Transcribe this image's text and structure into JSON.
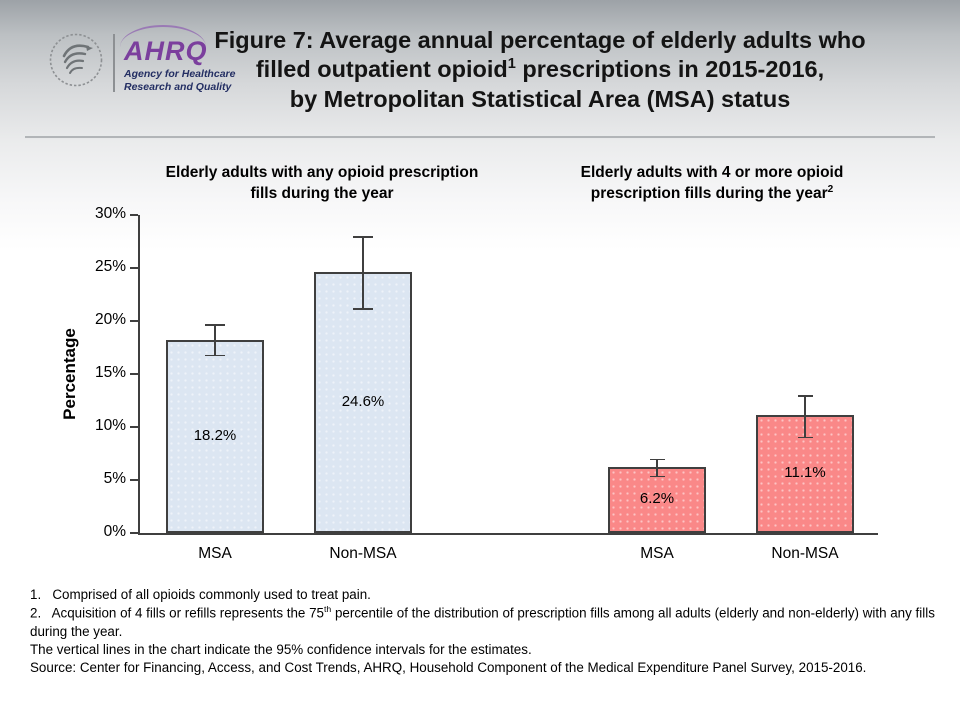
{
  "slide": {
    "logo": {
      "hhs_symbol": "hhs-eagle-icon",
      "org_acronym": "AHRQ",
      "org_name_line1": "Agency for Healthcare",
      "org_name_line2": "Research and Quality",
      "accent_purple": "#7b3f9d",
      "accent_navy": "#232e63"
    },
    "title": {
      "line1": "Figure 7: Average annual percentage of elderly adults who",
      "line2_pre": "filled outpatient opioid",
      "line2_sup": "1",
      "line2_post": " prescriptions in 2015-2016,",
      "line3": "by Metropolitan Statistical Area (MSA) status"
    }
  },
  "chart_data": {
    "type": "bar",
    "title": "",
    "xlabel": "",
    "ylabel": "Percentage",
    "ylim": [
      0,
      30
    ],
    "ytick_step": 5,
    "yticks": [
      "0%",
      "5%",
      "10%",
      "15%",
      "20%",
      "25%",
      "30%"
    ],
    "grid": false,
    "legend": "none",
    "error_bars": "95% confidence intervals",
    "bar_border_color": "#3f3f3f",
    "panels": [
      {
        "id": "any-opioid",
        "header_line1": "Elderly adults with any opioid prescription",
        "header_line2": "fills during the year",
        "header_sup": "",
        "fill": "#dce6f2",
        "bars": [
          {
            "category": "MSA",
            "value": 18.2,
            "label": "18.2%",
            "ci_low": 16.7,
            "ci_high": 19.7
          },
          {
            "category": "Non-MSA",
            "value": 24.6,
            "label": "24.6%",
            "ci_low": 21.1,
            "ci_high": 28.0
          }
        ]
      },
      {
        "id": "four-plus-fills",
        "header_line1": "Elderly adults with 4 or more opioid",
        "header_line2": "prescription fills during the year",
        "header_sup": "2",
        "fill": "#fa8888",
        "bars": [
          {
            "category": "MSA",
            "value": 6.2,
            "label": "6.2%",
            "ci_low": 5.3,
            "ci_high": 7.0
          },
          {
            "category": "Non-MSA",
            "value": 11.1,
            "label": "11.1%",
            "ci_low": 9.0,
            "ci_high": 13.0
          }
        ]
      }
    ]
  },
  "footnotes": {
    "fn1": "1.   Comprised of all opioids commonly used to treat pain.",
    "fn2_pre": "2.   Acquisition of 4 fills or refills represents the 75",
    "fn2_sup": "th",
    "fn2_post": " percentile of the distribution of prescription fills among all adults (elderly and non-elderly) with any fills during the year.",
    "fn3": "The vertical lines in the chart indicate the 95% confidence intervals for the estimates.",
    "fn4": "Source: Center for Financing, Access, and Cost Trends, AHRQ, Household Component of the Medical Expenditure Panel Survey, 2015-2016."
  }
}
